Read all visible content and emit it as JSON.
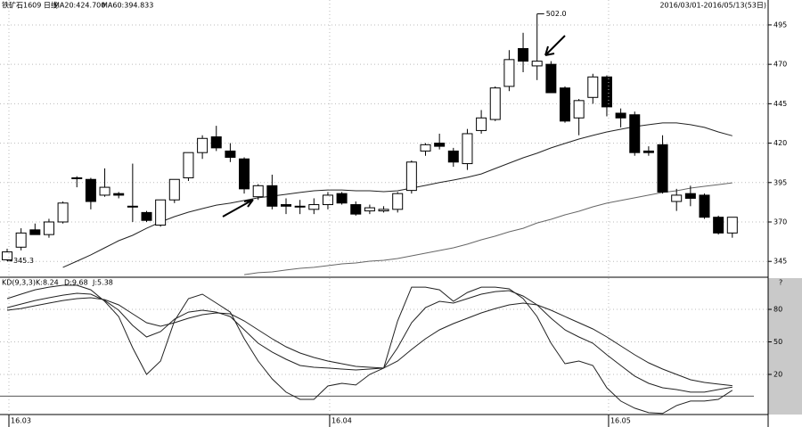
{
  "chart_data": [
    {
      "type": "candlestick",
      "title": "铁矿石1609 日线",
      "subtitle": "2016/03/01-2016/05/13(53日)",
      "categories": [
        "16.03",
        null,
        null,
        null,
        null,
        null,
        null,
        null,
        null,
        null,
        null,
        null,
        null,
        null,
        null,
        null,
        null,
        null,
        null,
        null,
        null,
        null,
        null,
        "16.04",
        null,
        null,
        null,
        null,
        null,
        null,
        null,
        null,
        null,
        null,
        null,
        null,
        null,
        null,
        null,
        null,
        null,
        null,
        null,
        "16.05",
        null,
        null,
        null,
        null,
        null,
        null,
        null,
        null,
        null
      ],
      "open": [
        346,
        354,
        365,
        362,
        370,
        398,
        397,
        387,
        388,
        380,
        376,
        368,
        384,
        398,
        414,
        424,
        415,
        410,
        386,
        393,
        381,
        380,
        378,
        381,
        388,
        381,
        377,
        377,
        378,
        390,
        415,
        420,
        415,
        407,
        428,
        435,
        456,
        480,
        469,
        470,
        455,
        436,
        449,
        462,
        439,
        438,
        415,
        419,
        383,
        388,
        387,
        373,
        363
      ],
      "high": [
        353,
        366,
        369,
        372,
        383,
        399,
        398,
        404,
        389,
        407,
        377,
        384,
        397,
        414,
        425,
        431,
        420,
        411,
        394,
        400,
        385,
        384,
        385,
        389,
        389,
        383,
        381,
        380,
        389,
        409,
        420,
        426,
        417,
        429,
        441,
        456,
        479,
        490,
        502,
        472,
        456,
        448,
        464,
        463,
        442,
        440,
        418,
        425,
        391,
        393,
        388,
        374,
        373
      ],
      "low": [
        345.3,
        352,
        362,
        360,
        369,
        392,
        378,
        386,
        385,
        370,
        370,
        367,
        382,
        396,
        410,
        415,
        408,
        388,
        384,
        378,
        375,
        375,
        375,
        378,
        381,
        374,
        375,
        376,
        376,
        388,
        412,
        416,
        405,
        403,
        426,
        434,
        453,
        465,
        460,
        452,
        433,
        425,
        445,
        437,
        430,
        412,
        412,
        388,
        377,
        380,
        372,
        362,
        360
      ],
      "close": [
        351,
        363,
        362,
        370,
        382,
        398,
        383,
        392,
        387,
        380,
        371,
        384,
        397,
        414,
        423,
        417,
        411,
        391,
        393,
        380,
        380,
        380,
        381,
        387,
        382,
        375,
        379,
        378,
        388,
        408,
        419,
        418,
        408,
        426,
        436,
        455,
        473,
        472,
        472,
        452,
        434,
        447,
        462,
        443,
        436,
        414,
        414,
        389,
        387,
        385,
        373,
        363,
        373
      ],
      "up_color": "#ffffff",
      "down_color": "#000000",
      "series": [
        {
          "name": "MA20:424.700",
          "color": "#222222",
          "values": [
            null,
            null,
            null,
            null,
            341.2,
            345.1,
            349.1,
            353.6,
            358.1,
            361.5,
            366.0,
            370.0,
            373.4,
            376.2,
            378.5,
            380.7,
            381.9,
            383.6,
            385.3,
            386.4,
            387.5,
            388.7,
            389.8,
            390.3,
            390.3,
            389.8,
            389.8,
            389.2,
            389.8,
            391.5,
            393.2,
            395.0,
            396.6,
            398.3,
            400.5,
            403.9,
            407.3,
            410.7,
            413.6,
            417.0,
            419.8,
            422.6,
            424.9,
            427.1,
            428.8,
            430.5,
            431.7,
            432.8,
            432.8,
            431.7,
            430.0,
            427.1,
            424.7
          ]
        },
        {
          "name": "MA60:394.833",
          "color": "#666666",
          "values": [
            null,
            null,
            null,
            null,
            null,
            null,
            null,
            null,
            null,
            null,
            null,
            null,
            null,
            null,
            null,
            null,
            null,
            336.6,
            337.8,
            338.3,
            339.5,
            340.6,
            341.2,
            342.3,
            343.4,
            344.0,
            345.1,
            345.7,
            346.8,
            348.5,
            350.2,
            351.9,
            353.6,
            355.9,
            358.7,
            361.0,
            363.8,
            366.0,
            369.4,
            371.7,
            374.5,
            376.8,
            379.6,
            381.9,
            383.6,
            385.3,
            387.0,
            388.7,
            389.8,
            391.5,
            392.6,
            393.7,
            394.833
          ]
        }
      ],
      "annotations": [
        "502.0",
        "345.3"
      ],
      "ylim": [
        335.5,
        510.8
      ],
      "yticks": [
        495,
        470,
        445,
        420,
        395,
        370,
        345
      ],
      "grid": true
    },
    {
      "type": "line",
      "title": "KD(9,3,3)",
      "series": [
        {
          "name": "K:8.24",
          "color": "#222222",
          "values": [
            81.6,
            84.9,
            88.2,
            90.7,
            93.1,
            94.8,
            94,
            88.2,
            79.2,
            65.2,
            54.5,
            59.5,
            71,
            77.5,
            79.2,
            77.5,
            73.4,
            61.1,
            48.8,
            40.6,
            34,
            28.2,
            26.6,
            25.8,
            24.9,
            24.1,
            24.9,
            25.8,
            44.7,
            67.7,
            81.6,
            87.4,
            85.8,
            89.9,
            94,
            96.4,
            97.3,
            92.3,
            84.1,
            71.8,
            61.1,
            54.5,
            48.8,
            38.1,
            28.2,
            18.4,
            11.8,
            7.7,
            6,
            3.6,
            3.6,
            6,
            8.24
          ]
        },
        {
          "name": "D:9.68",
          "color": "#222222",
          "values": [
            79.2,
            80.8,
            83.3,
            85.8,
            88.2,
            89.9,
            90.7,
            89,
            84.1,
            75.9,
            67.7,
            64.4,
            67.7,
            71.8,
            75.1,
            76.7,
            75.9,
            69.3,
            61.1,
            52.9,
            45.5,
            39.7,
            35.6,
            32.3,
            29.9,
            27.4,
            26.6,
            25.8,
            32.3,
            43,
            52.9,
            61.1,
            66.9,
            71.8,
            76.7,
            80.8,
            84.1,
            85.8,
            84.1,
            79.2,
            73.4,
            67.7,
            61.9,
            54.5,
            46.3,
            38.1,
            30.7,
            24.9,
            20,
            15.1,
            12.6,
            11,
            9.68
          ]
        },
        {
          "name": "J:5.38",
          "color": "#222222",
          "values": [
            89.9,
            94,
            98,
            100.5,
            102.2,
            102.2,
            98,
            87.4,
            73.4,
            44.7,
            20,
            32.3,
            69.3,
            89.9,
            94,
            85.8,
            77.5,
            52.9,
            32.3,
            15.9,
            3.6,
            -3,
            -3,
            9.3,
            11.8,
            10.2,
            20,
            25.8,
            69.3,
            100.5,
            100.5,
            98,
            87.4,
            95.6,
            100.5,
            100.5,
            98.9,
            89.9,
            73.4,
            48.8,
            29.9,
            32.3,
            28.2,
            7.7,
            -4.6,
            -11.2,
            -15.3,
            -16,
            -8.7,
            -4.6,
            -4.6,
            -3,
            5.38
          ]
        }
      ],
      "hline": 0,
      "help": "?",
      "ylim": [
        -17,
        108.8
      ],
      "yticks": [
        80,
        50,
        20
      ],
      "grid": true
    }
  ]
}
